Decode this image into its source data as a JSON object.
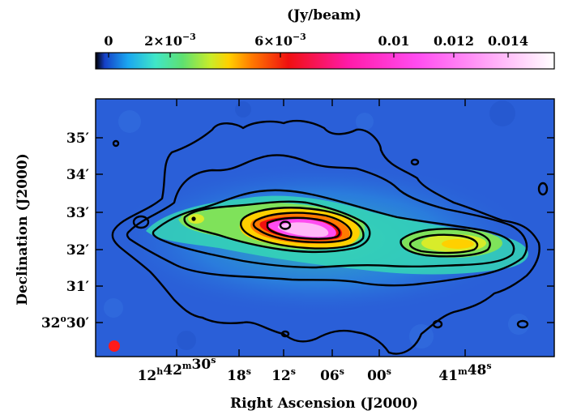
{
  "chart_data": {
    "type": "heatmap",
    "colorbar": {
      "title": "(Jy/beam)",
      "ticks": [
        {
          "value": 0,
          "label": "0"
        },
        {
          "value": 0.002,
          "label": "2×10−3"
        },
        {
          "value": 0.006,
          "label": "6×10−3"
        },
        {
          "value": 0.01,
          "label": "0.01"
        },
        {
          "value": 0.012,
          "label": "0.012"
        },
        {
          "value": 0.014,
          "label": "0.014"
        }
      ],
      "range": [
        -0.0003,
        0.0155
      ],
      "scale": "nonlinear",
      "colormap": [
        "#000000",
        "#1540c8",
        "#1aa6f0",
        "#3fe6c8",
        "#5fe070",
        "#c8ec2a",
        "#ffd000",
        "#ff7a00",
        "#f01010",
        "#ff1aa8",
        "#ff4cf0",
        "#ff90f6",
        "#ffd4fb",
        "#ffffff"
      ]
    },
    "xlabel": "Right Ascension (J2000)",
    "ylabel": "Declination (J2000)",
    "x_ticks": [
      {
        "value": "12h42m30s",
        "label": "12h42m30s"
      },
      {
        "value": "12h42m18s",
        "label": "18s"
      },
      {
        "value": "12h42m12s",
        "label": "12s"
      },
      {
        "value": "12h42m06s",
        "label": "06s"
      },
      {
        "value": "12h42m00s",
        "label": "00s"
      },
      {
        "value": "12h41m48s",
        "label": "41m48s"
      }
    ],
    "y_ticks": [
      {
        "value": "35'",
        "label": "35′"
      },
      {
        "value": "34'",
        "label": "34′"
      },
      {
        "value": "33'",
        "label": "33′"
      },
      {
        "value": "32'",
        "label": "32′"
      },
      {
        "value": "31'",
        "label": "31′"
      },
      {
        "value": "32°30'",
        "label": "32°30′"
      }
    ],
    "beam_color": "#ff1a1a",
    "background_color": "#2a5fd8",
    "contour_color": "#000000"
  }
}
